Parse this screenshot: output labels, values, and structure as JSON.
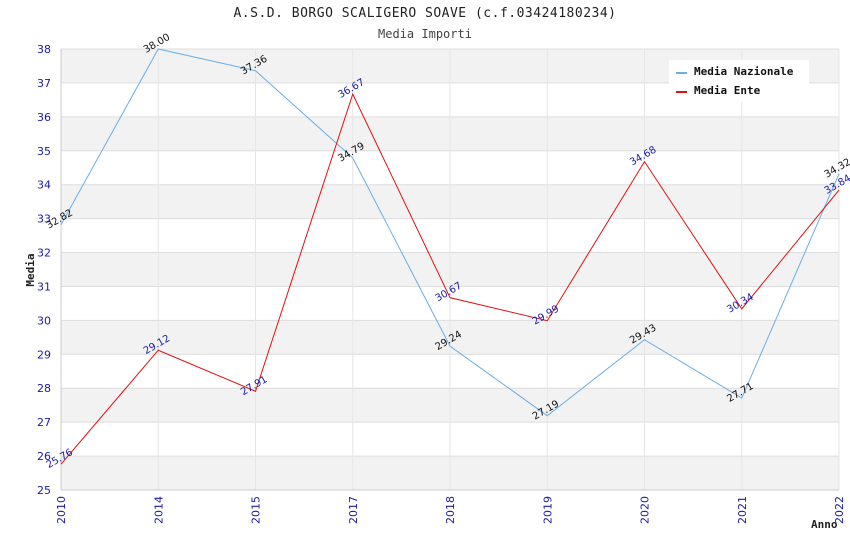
{
  "chart_data": {
    "type": "line",
    "title": "A.S.D. BORGO SCALIGERO SOAVE (c.f.03424180234)",
    "subtitle": "Media Importi",
    "xlabel": "Anno",
    "ylabel": "Media",
    "categories": [
      "2010",
      "2014",
      "2015",
      "2017",
      "2018",
      "2019",
      "2020",
      "2021",
      "2022"
    ],
    "ylim": [
      25,
      38
    ],
    "yticks": [
      25,
      26,
      27,
      28,
      29,
      30,
      31,
      32,
      33,
      34,
      35,
      36,
      37,
      38
    ],
    "grid": true,
    "legend_position": "top-right",
    "series": [
      {
        "name": "Media Nazionale",
        "color": "#6aaee6",
        "values": [
          32.82,
          38.0,
          37.36,
          34.79,
          29.24,
          27.19,
          29.43,
          27.71,
          34.32
        ],
        "labels": [
          "32.82",
          "38.00",
          "37.36",
          "34.79",
          "29.24",
          "27.19",
          "29.43",
          "27.71",
          "34.32"
        ]
      },
      {
        "name": "Media Ente",
        "color": "#e01010",
        "values": [
          25.76,
          29.12,
          27.91,
          36.67,
          30.67,
          29.99,
          34.68,
          30.34,
          33.84
        ],
        "labels": [
          "25.76",
          "29.12",
          "27.91",
          "36.67",
          "30.67",
          "29.99",
          "34.68",
          "30.34",
          "33.84"
        ]
      }
    ]
  }
}
